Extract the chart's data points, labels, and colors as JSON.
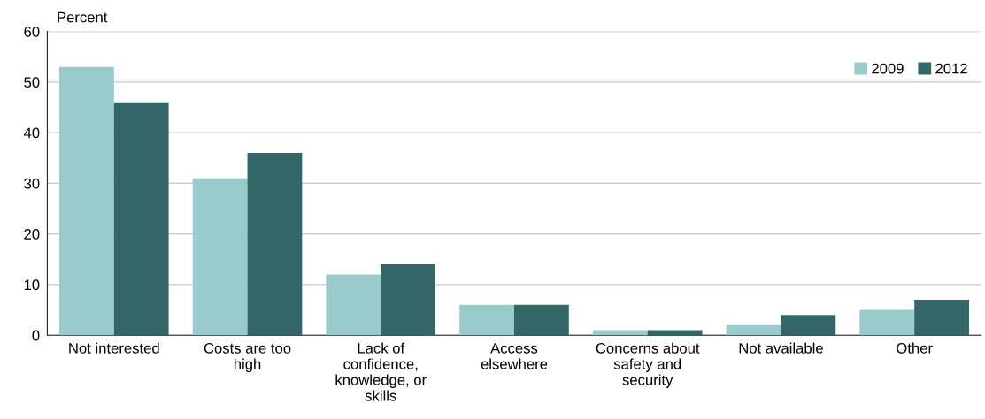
{
  "chart_data": {
    "type": "bar",
    "ylabel": "Percent",
    "categories": [
      "Not interested",
      "Costs are too\nhigh",
      "Lack of\nconfidence,\nknowledge, or\nskills",
      "Access\nelsewhere",
      "Concerns about\nsafety and\nsecurity",
      "Not available",
      "Other"
    ],
    "series": [
      {
        "name": "2009",
        "color": "#9acbcc",
        "values": [
          53,
          31,
          12,
          6,
          1,
          2,
          5
        ]
      },
      {
        "name": "2012",
        "color": "#336666",
        "values": [
          46,
          36,
          14,
          6,
          1,
          4,
          7
        ]
      }
    ],
    "ylim": [
      0,
      60
    ],
    "yticks": [
      0,
      10,
      20,
      30,
      40,
      50,
      60
    ],
    "grid": "y",
    "legend": "top right"
  }
}
